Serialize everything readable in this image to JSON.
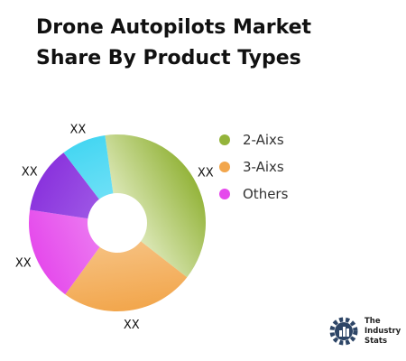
{
  "chart_data": {
    "type": "pie",
    "title": "Drone Autopilots Market Share By Product Types",
    "categories": [
      "2-Aixs",
      "3-Aixs",
      "Others"
    ],
    "slices": [
      {
        "legend": "2-Aixs",
        "label": "XX",
        "value": 37,
        "color": "#94b43b",
        "shade": "#e6efc9"
      },
      {
        "legend": "3-Aixs",
        "label": "XX",
        "value": 24,
        "color": "#f2a64c",
        "shade": "#f7c88e"
      },
      {
        "legend": "Others",
        "label": "XX",
        "value": 17,
        "color": "#e54aec",
        "shade": "#ee87f2"
      },
      {
        "legend": "Others",
        "label": "XX",
        "value": 12,
        "color": "#8a33dd",
        "shade": "#a463e8"
      },
      {
        "legend": "Others",
        "label": "XX",
        "value": 8,
        "color": "#45d6f2",
        "shade": "#7fe4f8"
      }
    ],
    "legend": [
      {
        "label": "2-Aixs",
        "color": "#94b43b"
      },
      {
        "label": "3-Aixs",
        "color": "#f2a64c"
      },
      {
        "label": "Others",
        "color": "#e54aec"
      }
    ]
  },
  "brand": {
    "line1": "The",
    "line2": "Industry",
    "line3": "Stats"
  }
}
